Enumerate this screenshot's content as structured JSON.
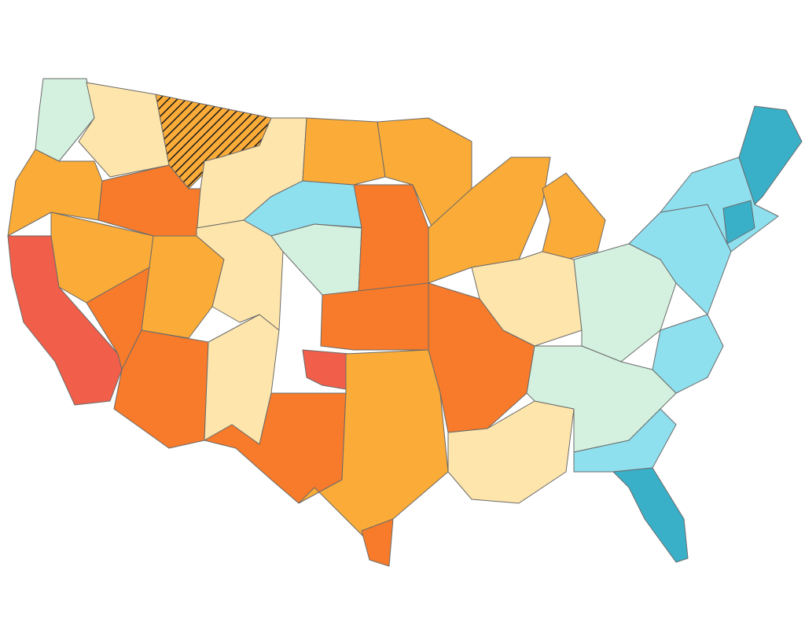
{
  "map": {
    "colors": [
      "#d3f1de",
      "#fee5ab",
      "#fbab37",
      "#f77b2a",
      "#f15e4a",
      "#8fe0ef",
      "#3ab0c8"
    ],
    "hatch_color": "#1a1a1a"
  }
}
